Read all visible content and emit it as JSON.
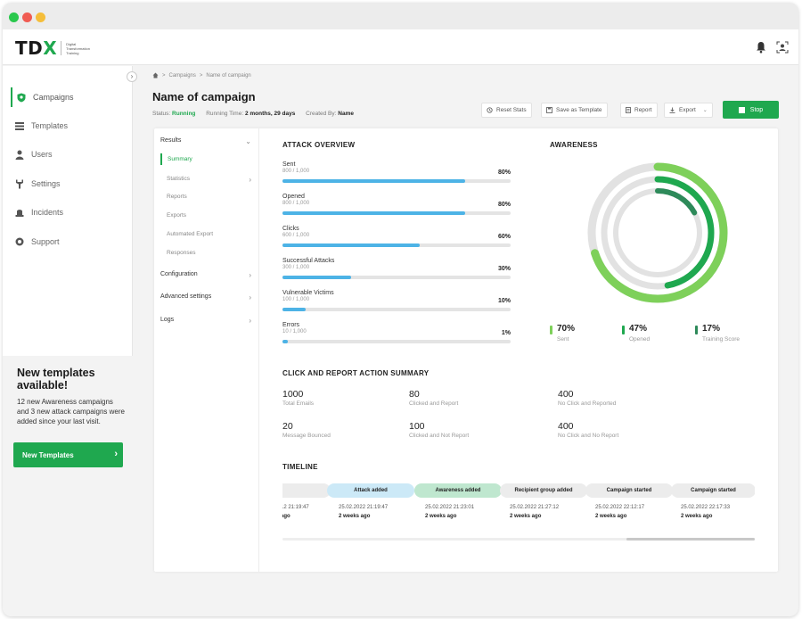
{
  "app": {
    "logo_text_main": "TD",
    "logo_text_accent": "X",
    "logo_subtitle": "Digital Transformation Training"
  },
  "sidebar": {
    "items": [
      {
        "label": "Campaigns",
        "icon": "shield-icon",
        "active": true
      },
      {
        "label": "Templates",
        "icon": "list-icon"
      },
      {
        "label": "Users",
        "icon": "users-icon"
      },
      {
        "label": "Settings",
        "icon": "wrench-icon"
      },
      {
        "label": "Incidents",
        "icon": "incident-icon"
      },
      {
        "label": "Support",
        "icon": "support-icon"
      }
    ],
    "promo": {
      "title": "New templates available!",
      "text": "12 new Awareness campaigns and 3 new attack campaigns were added since your last visit.",
      "button": "New Templates"
    }
  },
  "breadcrumb": {
    "items": [
      "Campaigns",
      "Name of campaign"
    ]
  },
  "header": {
    "title": "Name of campaign",
    "status_label": "Status:",
    "status_value": "Running",
    "running_label": "Running Time:",
    "running_value": "2 months, 29 days",
    "created_label": "Created By:",
    "created_value": "Name"
  },
  "toolbar": {
    "reset": "Reset Stats",
    "save_template": "Save as Template",
    "report": "Report",
    "export": "Export",
    "stop": "Stop"
  },
  "leftmenu": {
    "results": "Results",
    "summary": "Summary",
    "statistics": "Statistics",
    "reports": "Reports",
    "exports": "Exports",
    "automated_export": "Automated Export",
    "responses": "Responses",
    "configuration": "Configuration",
    "advanced": "Advanced settings",
    "logs": "Logs"
  },
  "attack_overview": {
    "title": "ATTACK OVERVIEW",
    "metrics": [
      {
        "name": "Sent",
        "sub": "800 / 1,000",
        "pct": "80%",
        "value": 0.8
      },
      {
        "name": "Opened",
        "sub": "800 / 1,000",
        "pct": "80%",
        "value": 0.8
      },
      {
        "name": "Clicks",
        "sub": "600 / 1,000",
        "pct": "60%",
        "value": 0.6
      },
      {
        "name": "Successful Attacks",
        "sub": "300 / 1,000",
        "pct": "30%",
        "value": 0.3
      },
      {
        "name": "Vulnerable Victims",
        "sub": "100 / 1,000",
        "pct": "10%",
        "value": 0.1
      },
      {
        "name": "Errors",
        "sub": "10 / 1,000",
        "pct": "1%",
        "value": 0.01
      }
    ]
  },
  "awareness": {
    "title": "AWARENESS",
    "rings": [
      {
        "value": "70%",
        "label": "Sent",
        "fraction": 0.7,
        "color": "#7ed05a"
      },
      {
        "value": "47%",
        "label": "Opened",
        "fraction": 0.47,
        "color": "#1fa84f"
      },
      {
        "value": "17%",
        "label": "Training Score",
        "fraction": 0.17,
        "color": "#2e8a5a"
      }
    ]
  },
  "summary": {
    "title": "CLICK AND REPORT ACTION SUMMARY",
    "items": [
      {
        "num": "1000",
        "label": "Total Emails"
      },
      {
        "num": "80",
        "label": "Clicked and Report"
      },
      {
        "num": "400",
        "label": "No Click and Reported"
      },
      {
        "num": "20",
        "label": "Message Bounced"
      },
      {
        "num": "100",
        "label": "Clicked and Not Report"
      },
      {
        "num": "400",
        "label": "No Click and No Report"
      }
    ]
  },
  "timeline": {
    "title": "TIMELINE",
    "events": [
      {
        "label": "",
        "date": "12 21:19:47",
        "ago": "ago",
        "color": "#ececec"
      },
      {
        "label": "Attack added",
        "date": "25.02.2022 21:19:47",
        "ago": "2 weeks ago",
        "color": "#cce9f7"
      },
      {
        "label": "Awareness added",
        "date": "25.02.2022 21:23:01",
        "ago": "2 weeks ago",
        "color": "#bfe7cf"
      },
      {
        "label": "Recipient group added",
        "date": "25.02.2022 21:27:12",
        "ago": "2 weeks ago",
        "color": "#ececec"
      },
      {
        "label": "Campaign started",
        "date": "25.02.2022 22:12:17",
        "ago": "2 weeks ago",
        "color": "#ececec"
      },
      {
        "label": "Campaign started",
        "date": "25.02.2022 22:17:33",
        "ago": "2 weeks ago",
        "color": "#ececec"
      }
    ]
  }
}
